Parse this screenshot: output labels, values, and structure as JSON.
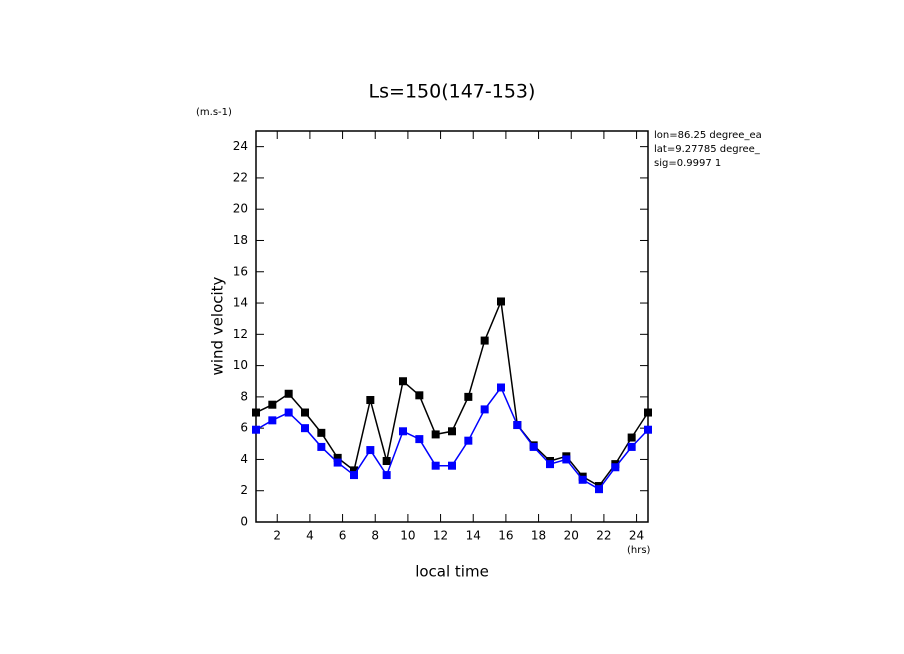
{
  "chart_data": {
    "type": "line",
    "title": "Ls=150(147-153)",
    "y_unit": "(m.s-1)",
    "y_label": "wind velocity",
    "x_label": "local time",
    "x_unit": "(hrs)",
    "annotations": [
      "lon=86.25 degree_ea",
      "lat=9.27785 degree_",
      "sig=0.9997 1"
    ],
    "x": [
      0.7,
      1.7,
      2.7,
      3.7,
      4.7,
      5.7,
      6.7,
      7.7,
      8.7,
      9.7,
      10.7,
      11.7,
      12.7,
      13.7,
      14.7,
      15.7,
      16.7,
      17.7,
      18.7,
      19.7,
      20.7,
      21.7,
      22.7,
      23.7,
      24.7
    ],
    "series": [
      {
        "color": "#000000",
        "values": [
          7.0,
          7.5,
          8.2,
          7.0,
          5.7,
          4.1,
          3.3,
          7.8,
          3.9,
          9.0,
          8.1,
          5.6,
          5.8,
          8.0,
          11.6,
          14.1,
          6.2,
          4.9,
          3.9,
          4.2,
          2.9,
          2.3,
          3.7,
          5.4,
          7.0
        ]
      },
      {
        "color": "#0000ff",
        "values": [
          5.9,
          6.5,
          7.0,
          6.0,
          4.8,
          3.8,
          3.0,
          4.6,
          3.0,
          5.8,
          5.3,
          3.6,
          3.6,
          5.2,
          7.2,
          8.6,
          6.2,
          4.8,
          3.7,
          4.0,
          2.7,
          2.1,
          3.5,
          4.8,
          5.9
        ]
      }
    ],
    "xlim": [
      0.7,
      24.7
    ],
    "ylim": [
      0,
      25
    ],
    "xticks": [
      2,
      4,
      6,
      8,
      10,
      12,
      14,
      16,
      18,
      20,
      22,
      24
    ],
    "yticks": [
      0,
      2,
      4,
      6,
      8,
      10,
      12,
      14,
      16,
      18,
      20,
      22,
      24
    ]
  }
}
